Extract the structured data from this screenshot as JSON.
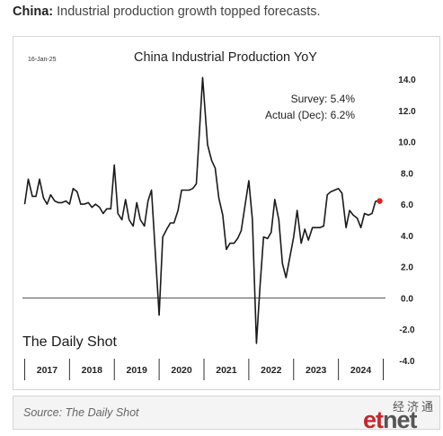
{
  "headline": {
    "bold": "China:",
    "text": " Industrial production growth topped forecasts."
  },
  "source": "Source: The Daily Shot",
  "watermark": {
    "cn": "经济通",
    "logo_red": "et",
    "logo_gray": "net"
  },
  "chart_data": {
    "type": "line",
    "title": "China Industrial Production YoY",
    "date_stamp": "16-Jan-25",
    "brand": "The Daily Shot",
    "annotation": {
      "survey": "Survey:  5.4%",
      "actual": "Actual (Dec):  6.2%"
    },
    "xlabel": "",
    "ylabel": "",
    "ylim": [
      -4.0,
      14.0
    ],
    "yticks": [
      "14.0",
      "12.0",
      "10.0",
      "8.0",
      "6.0",
      "4.0",
      "2.0",
      "0.0",
      "-2.0",
      "-4.0"
    ],
    "ytick_values": [
      14,
      12,
      10,
      8,
      6,
      4,
      2,
      0,
      -2,
      -4
    ],
    "year_labels": [
      "2017",
      "2018",
      "2019",
      "2020",
      "2021",
      "2022",
      "2023",
      "2024"
    ],
    "year_starts": [
      2017,
      2018,
      2019,
      2020,
      2021,
      2022,
      2023,
      2024,
      2025
    ],
    "xlim": [
      2016.95,
      2025.05
    ],
    "series": [
      {
        "color": "#1a1a1a",
        "points": [
          [
            2017.0,
            6.0
          ],
          [
            2017.08,
            7.6
          ],
          [
            2017.17,
            6.5
          ],
          [
            2017.25,
            6.5
          ],
          [
            2017.33,
            7.6
          ],
          [
            2017.42,
            6.4
          ],
          [
            2017.5,
            6.0
          ],
          [
            2017.58,
            6.6
          ],
          [
            2017.67,
            6.2
          ],
          [
            2017.75,
            6.1
          ],
          [
            2017.83,
            6.1
          ],
          [
            2017.92,
            6.2
          ],
          [
            2018.0,
            6.0
          ],
          [
            2018.08,
            7.0
          ],
          [
            2018.17,
            6.8
          ],
          [
            2018.25,
            6.0
          ],
          [
            2018.33,
            6.0
          ],
          [
            2018.42,
            6.1
          ],
          [
            2018.5,
            5.8
          ],
          [
            2018.58,
            6.0
          ],
          [
            2018.67,
            5.8
          ],
          [
            2018.75,
            5.4
          ],
          [
            2018.83,
            5.7
          ],
          [
            2018.92,
            5.7
          ],
          [
            2019.0,
            8.5
          ],
          [
            2019.08,
            5.4
          ],
          [
            2019.17,
            5.0
          ],
          [
            2019.25,
            6.3
          ],
          [
            2019.33,
            5.0
          ],
          [
            2019.42,
            4.6
          ],
          [
            2019.5,
            6.1
          ],
          [
            2019.58,
            5.0
          ],
          [
            2019.67,
            4.6
          ],
          [
            2019.75,
            6.2
          ],
          [
            2019.83,
            6.9
          ],
          [
            2020.0,
            -1.1
          ],
          [
            2020.08,
            3.9
          ],
          [
            2020.17,
            4.4
          ],
          [
            2020.25,
            4.8
          ],
          [
            2020.33,
            4.8
          ],
          [
            2020.42,
            5.6
          ],
          [
            2020.5,
            6.9
          ],
          [
            2020.58,
            6.9
          ],
          [
            2020.67,
            6.9
          ],
          [
            2020.75,
            7.0
          ],
          [
            2020.83,
            7.3
          ],
          [
            2020.97,
            14.1
          ],
          [
            2021.08,
            9.8
          ],
          [
            2021.17,
            8.8
          ],
          [
            2021.25,
            8.3
          ],
          [
            2021.33,
            6.4
          ],
          [
            2021.42,
            5.3
          ],
          [
            2021.5,
            3.1
          ],
          [
            2021.58,
            3.5
          ],
          [
            2021.67,
            3.5
          ],
          [
            2021.75,
            3.8
          ],
          [
            2021.83,
            4.3
          ],
          [
            2022.0,
            7.5
          ],
          [
            2022.08,
            5.0
          ],
          [
            2022.17,
            -2.9
          ],
          [
            2022.25,
            0.7
          ],
          [
            2022.33,
            3.9
          ],
          [
            2022.42,
            3.8
          ],
          [
            2022.5,
            4.2
          ],
          [
            2022.58,
            6.3
          ],
          [
            2022.67,
            5.0
          ],
          [
            2022.75,
            2.2
          ],
          [
            2022.83,
            1.3
          ],
          [
            2023.0,
            3.9
          ],
          [
            2023.08,
            5.6
          ],
          [
            2023.17,
            3.5
          ],
          [
            2023.25,
            4.4
          ],
          [
            2023.33,
            3.7
          ],
          [
            2023.42,
            4.5
          ],
          [
            2023.5,
            4.5
          ],
          [
            2023.58,
            4.5
          ],
          [
            2023.67,
            4.6
          ],
          [
            2023.75,
            6.6
          ],
          [
            2023.83,
            6.8
          ],
          [
            2024.0,
            7.0
          ],
          [
            2024.08,
            6.7
          ],
          [
            2024.17,
            4.5
          ],
          [
            2024.25,
            5.6
          ],
          [
            2024.33,
            5.3
          ],
          [
            2024.42,
            5.1
          ],
          [
            2024.5,
            4.5
          ],
          [
            2024.58,
            5.4
          ],
          [
            2024.67,
            5.3
          ],
          [
            2024.75,
            5.4
          ],
          [
            2024.83,
            6.2
          ]
        ]
      }
    ],
    "latest_point": {
      "x": 2024.92,
      "y": 6.2,
      "color": "#e02020"
    }
  }
}
